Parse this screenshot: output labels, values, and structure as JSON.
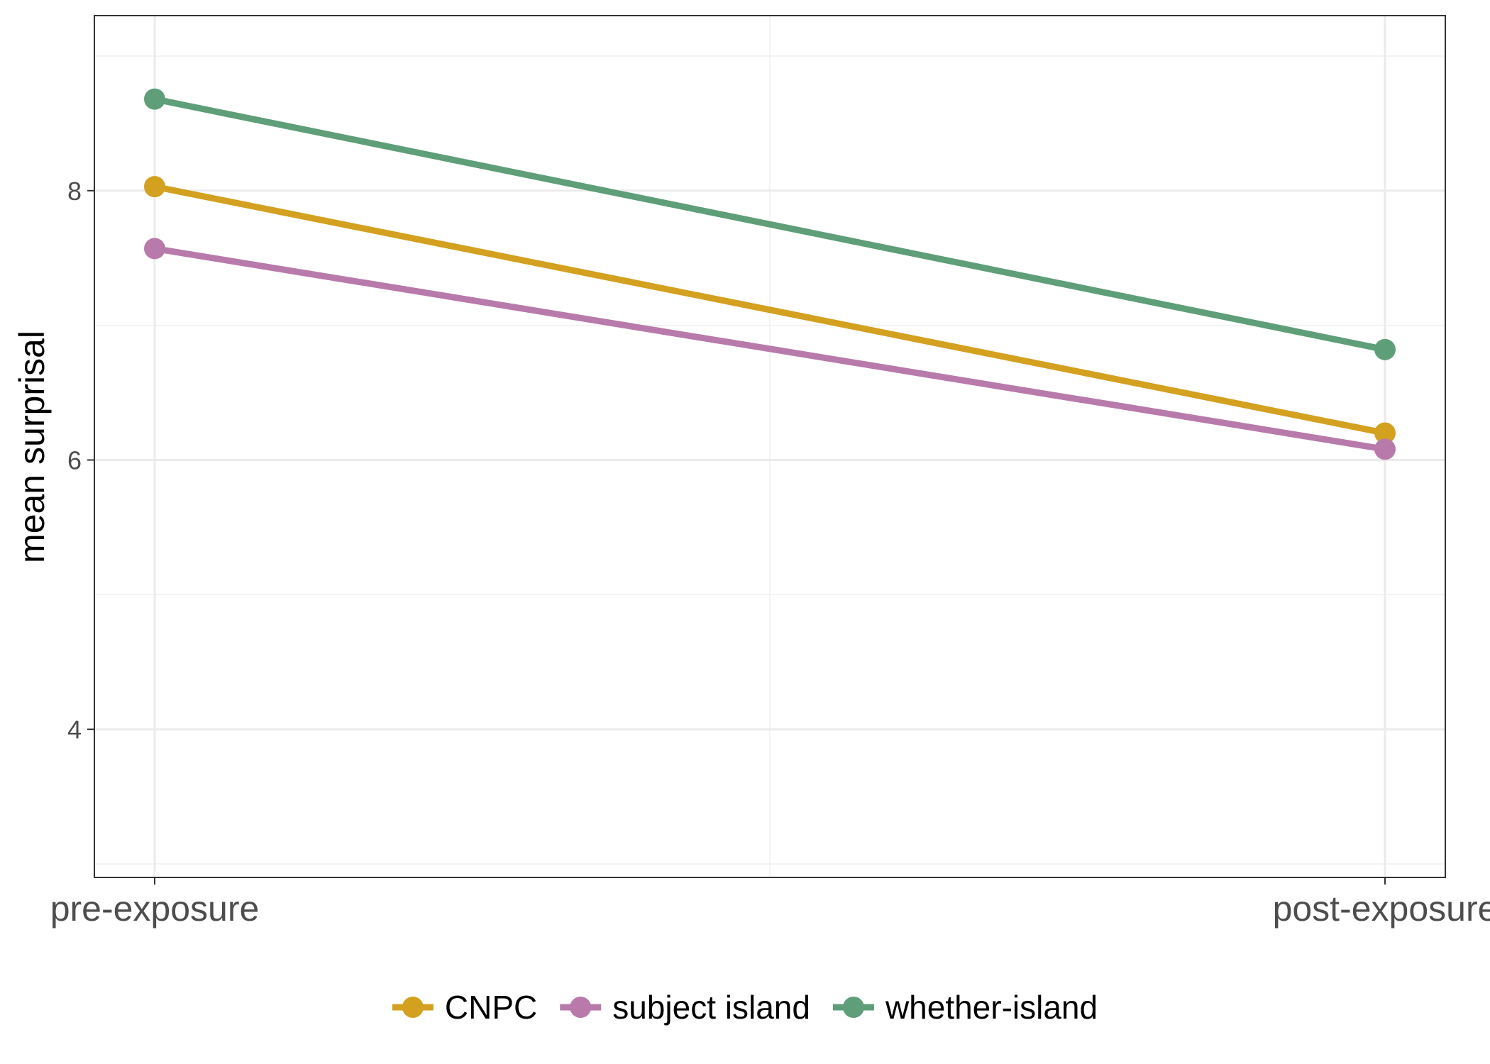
{
  "chart_data": {
    "type": "line",
    "title": "",
    "xlabel": "",
    "ylabel": "mean surprisal",
    "categories": [
      "pre-exposure",
      "post-exposure"
    ],
    "ylim": [
      2.9,
      9.3
    ],
    "yticks": [
      4,
      6,
      8
    ],
    "grid": true,
    "legend_position": "bottom",
    "series": [
      {
        "name": "CNPC",
        "color": "#d4a020",
        "values": [
          8.03,
          6.2
        ]
      },
      {
        "name": "subject island",
        "color": "#b87aab",
        "values": [
          7.57,
          6.08
        ]
      },
      {
        "name": "whether-island",
        "color": "#5e9e78",
        "values": [
          8.68,
          6.82
        ]
      }
    ]
  }
}
